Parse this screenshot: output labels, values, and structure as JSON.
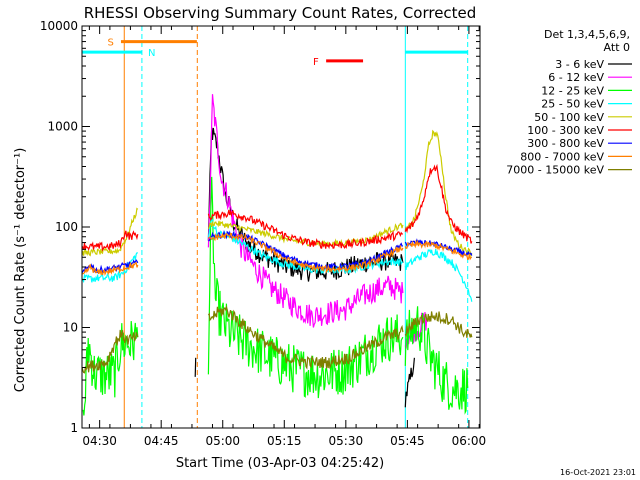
{
  "chart_data": {
    "type": "line",
    "title": "RHESSI Observing Summary Count Rates, Corrected",
    "xlabel": "Start Time (03-Apr-03 04:25:42)",
    "ylabel": "Corrected Count Rate (s⁻¹ detector⁻¹)",
    "yscale": "log",
    "ylim": [
      1,
      10000
    ],
    "xlim_minutes": [
      0,
      97
    ],
    "y_ticks": [
      {
        "v": 1,
        "label": "1"
      },
      {
        "v": 10,
        "label": "10"
      },
      {
        "v": 100,
        "label": "100"
      },
      {
        "v": 1000,
        "label": "1000"
      },
      {
        "v": 10000,
        "label": "10000"
      }
    ],
    "x_ticks": [
      {
        "m": 4.3,
        "label": "04:30"
      },
      {
        "m": 19.3,
        "label": "04:45"
      },
      {
        "m": 34.3,
        "label": "05:00"
      },
      {
        "m": 49.3,
        "label": "05:15"
      },
      {
        "m": 64.3,
        "label": "05:30"
      },
      {
        "m": 79.3,
        "label": "05:45"
      },
      {
        "m": 94.3,
        "label": "06:00"
      }
    ],
    "legend_header": [
      "Det 1,3,4,5,6,9,",
      "Att 0"
    ],
    "footer_date": "16-Oct-2021 23:01",
    "flags": [
      {
        "name": "S",
        "label": "S",
        "color": "#ff7f00",
        "start": 9.5,
        "end": 28.0,
        "level": 7000,
        "label_m": 7.0,
        "label_y": 7000
      },
      {
        "name": "N",
        "label": "N",
        "color": "#00ffff",
        "start": 0,
        "end": 14.5,
        "level": 5500,
        "label_m": 17.0,
        "label_y": 5500
      },
      {
        "name": "F",
        "label": "F",
        "color": "#ff0000",
        "start": 59.5,
        "end": 68.5,
        "level": 4500,
        "label_m": 57.0,
        "label_y": 4500
      },
      {
        "name": "N2",
        "label": "",
        "color": "#00ffff",
        "start": 78.8,
        "end": 94.0,
        "level": 5500
      }
    ],
    "markers": [
      {
        "m": 10.3,
        "color": "#ff7f00",
        "style": "solid"
      },
      {
        "m": 14.6,
        "color": "#00ffff",
        "style": "dashed"
      },
      {
        "m": 28.1,
        "color": "#ff7f00",
        "style": "dashed"
      },
      {
        "m": 78.8,
        "color": "#00ffff",
        "style": "solid"
      },
      {
        "m": 94.0,
        "color": "#00ffff",
        "style": "dashed"
      }
    ],
    "series": [
      {
        "name": "3 - 6 keV",
        "color": "#000000",
        "noise": 0.1,
        "segments": [
          [
            [
              27.6,
              3
            ],
            [
              27.7,
              5
            ]
          ],
          [
            [
              30.8,
              80
            ],
            [
              31.6,
              900
            ],
            [
              33.0,
              620
            ],
            [
              35.0,
              200
            ],
            [
              36.0,
              160
            ],
            [
              37.0,
              110
            ],
            [
              40.0,
              70
            ],
            [
              44.0,
              52
            ],
            [
              50.0,
              40
            ],
            [
              55.0,
              36
            ],
            [
              60.0,
              36
            ],
            [
              65.0,
              40
            ],
            [
              70.0,
              45
            ],
            [
              75.0,
              46
            ],
            [
              78.2,
              44
            ]
          ],
          [
            [
              78.8,
              2
            ],
            [
              80.0,
              3
            ],
            [
              81.0,
              5
            ]
          ]
        ]
      },
      {
        "name": "6 - 12 keV",
        "color": "#ff00ff",
        "noise": 0.12,
        "segments": [
          [
            [
              30.8,
              50
            ],
            [
              31.8,
              1800
            ],
            [
              32.7,
              900
            ],
            [
              34.0,
              300
            ],
            [
              35.5,
              200
            ],
            [
              37.0,
              110
            ],
            [
              39.0,
              60
            ],
            [
              42.0,
              40
            ],
            [
              46.0,
              25
            ],
            [
              52.0,
              16
            ],
            [
              56.0,
              13
            ],
            [
              60.0,
              14
            ],
            [
              64.0,
              15
            ],
            [
              68.0,
              20
            ],
            [
              72.0,
              24
            ],
            [
              75.0,
              26
            ],
            [
              78.2,
              22
            ]
          ],
          [
            [
              78.8,
              8
            ],
            [
              82.0,
              10
            ],
            [
              84.0,
              12
            ]
          ]
        ]
      },
      {
        "name": "12 - 25 keV",
        "color": "#00ff00",
        "noise": 0.25,
        "segments": [
          [
            [
              0.3,
              1.1
            ],
            [
              1.0,
              3
            ],
            [
              1.5,
              7
            ],
            [
              3.0,
              3.5
            ],
            [
              6.0,
              3.3
            ],
            [
              8.0,
              3.5
            ],
            [
              9.5,
              7
            ],
            [
              12.0,
              7
            ],
            [
              13.6,
              8
            ]
          ],
          [
            [
              30.8,
              6
            ],
            [
              31.6,
              200
            ],
            [
              32.5,
              20
            ],
            [
              34.0,
              12
            ],
            [
              36.0,
              9
            ],
            [
              40.0,
              7
            ],
            [
              46.0,
              5
            ],
            [
              52.0,
              3.8
            ],
            [
              58.0,
              3.4
            ],
            [
              64.0,
              3.8
            ],
            [
              68.0,
              5
            ],
            [
              72.0,
              7
            ],
            [
              75.0,
              8
            ],
            [
              78.2,
              8
            ]
          ],
          [
            [
              78.8,
              7
            ],
            [
              80.0,
              9
            ],
            [
              82.0,
              11
            ],
            [
              85.0,
              5
            ],
            [
              88.0,
              3
            ],
            [
              90.0,
              2.5
            ],
            [
              94.0,
              2.5
            ]
          ]
        ]
      },
      {
        "name": "25 - 50 keV",
        "color": "#00ffff",
        "noise": 0.04,
        "segments": [
          [
            [
              0.0,
              30
            ],
            [
              4.0,
              31
            ],
            [
              8.0,
              31
            ],
            [
              10.0,
              35
            ],
            [
              12.0,
              45
            ],
            [
              13.6,
              55
            ]
          ],
          [
            [
              30.8,
              80
            ],
            [
              31.6,
              120
            ],
            [
              33.0,
              85
            ],
            [
              36.0,
              80
            ],
            [
              40.0,
              65
            ],
            [
              44.0,
              52
            ],
            [
              50.0,
              42
            ],
            [
              55.0,
              38
            ],
            [
              60.0,
              37
            ],
            [
              65.0,
              38
            ],
            [
              70.0,
              42
            ],
            [
              74.0,
              45
            ],
            [
              78.2,
              45
            ]
          ],
          [
            [
              78.8,
              40
            ],
            [
              82.0,
              50
            ],
            [
              86.0,
              58
            ],
            [
              90.0,
              45
            ],
            [
              92.0,
              35
            ],
            [
              94.0,
              25
            ],
            [
              95.0,
              18
            ]
          ]
        ]
      },
      {
        "name": "50 - 100 keV",
        "color": "#cccc00",
        "noise": 0.03,
        "segments": [
          [
            [
              0.0,
              55
            ],
            [
              3.0,
              56
            ],
            [
              6.0,
              57
            ],
            [
              9.0,
              58
            ],
            [
              11.0,
              80
            ],
            [
              12.5,
              120
            ],
            [
              13.6,
              150
            ]
          ],
          [
            [
              30.8,
              100
            ],
            [
              32.0,
              110
            ],
            [
              35.0,
              105
            ],
            [
              40.0,
              95
            ],
            [
              45.0,
              85
            ],
            [
              50.0,
              75
            ],
            [
              55.0,
              70
            ],
            [
              60.0,
              68
            ],
            [
              65.0,
              70
            ],
            [
              70.0,
              75
            ],
            [
              74.0,
              90
            ],
            [
              78.2,
              105
            ]
          ],
          [
            [
              78.8,
              90
            ],
            [
              81.0,
              120
            ],
            [
              83.0,
              250
            ],
            [
              84.5,
              650
            ],
            [
              85.5,
              850
            ],
            [
              86.5,
              850
            ],
            [
              87.5,
              500
            ],
            [
              88.5,
              220
            ],
            [
              90.0,
              90
            ],
            [
              92.0,
              65
            ],
            [
              95.0,
              55
            ]
          ]
        ]
      },
      {
        "name": "100 - 300 keV",
        "color": "#ff0000",
        "noise": 0.04,
        "segments": [
          [
            [
              0.0,
              65
            ],
            [
              3.0,
              63
            ],
            [
              6.0,
              64
            ],
            [
              8.0,
              65
            ],
            [
              9.5,
              70
            ],
            [
              10.5,
              90
            ],
            [
              11.5,
              80
            ],
            [
              13.6,
              85
            ]
          ],
          [
            [
              30.8,
              125
            ],
            [
              33.0,
              132
            ],
            [
              36.0,
              138
            ],
            [
              40.0,
              125
            ],
            [
              45.0,
              100
            ],
            [
              50.0,
              80
            ],
            [
              55.0,
              70
            ],
            [
              60.0,
              66
            ],
            [
              65.0,
              67
            ],
            [
              70.0,
              72
            ],
            [
              74.0,
              78
            ],
            [
              78.2,
              85
            ]
          ],
          [
            [
              78.8,
              90
            ],
            [
              81.0,
              110
            ],
            [
              83.0,
              170
            ],
            [
              84.5,
              330
            ],
            [
              85.5,
              400
            ],
            [
              86.5,
              380
            ],
            [
              87.5,
              260
            ],
            [
              88.5,
              160
            ],
            [
              90.0,
              110
            ],
            [
              92.0,
              90
            ],
            [
              95.0,
              72
            ]
          ]
        ]
      },
      {
        "name": "300 - 800 keV",
        "color": "#0000ff",
        "noise": 0.03,
        "segments": [
          [
            [
              0.0,
              34
            ],
            [
              2.0,
              42
            ],
            [
              3.5,
              37
            ],
            [
              6.0,
              38
            ],
            [
              9.0,
              40
            ],
            [
              11.0,
              42
            ],
            [
              13.6,
              44
            ]
          ],
          [
            [
              30.8,
              78
            ],
            [
              33.0,
              83
            ],
            [
              36.0,
              84
            ],
            [
              40.0,
              80
            ],
            [
              45.0,
              65
            ],
            [
              50.0,
              50
            ],
            [
              55.0,
              43
            ],
            [
              60.0,
              40
            ],
            [
              65.0,
              41
            ],
            [
              70.0,
              45
            ],
            [
              74.0,
              55
            ],
            [
              78.2,
              65
            ]
          ],
          [
            [
              78.8,
              68
            ],
            [
              82.0,
              70
            ],
            [
              86.0,
              68
            ],
            [
              90.0,
              60
            ],
            [
              93.0,
              55
            ],
            [
              95.0,
              52
            ]
          ]
        ]
      },
      {
        "name": "800 - 7000 keV",
        "color": "#ff7f00",
        "noise": 0.03,
        "segments": [
          [
            [
              0.0,
              32
            ],
            [
              2.0,
              40
            ],
            [
              3.5,
              35
            ],
            [
              6.0,
              36
            ],
            [
              9.0,
              38
            ],
            [
              11.0,
              40
            ],
            [
              13.6,
              42
            ]
          ],
          [
            [
              30.8,
              74
            ],
            [
              33.0,
              80
            ],
            [
              36.0,
              82
            ],
            [
              40.0,
              78
            ],
            [
              45.0,
              62
            ],
            [
              50.0,
              47
            ],
            [
              55.0,
              40
            ],
            [
              60.0,
              38
            ],
            [
              65.0,
              39
            ],
            [
              70.0,
              43
            ],
            [
              74.0,
              52
            ],
            [
              78.2,
              62
            ]
          ],
          [
            [
              78.8,
              64
            ],
            [
              82.0,
              67
            ],
            [
              86.0,
              66
            ],
            [
              90.0,
              58
            ],
            [
              93.0,
              52
            ],
            [
              95.0,
              50
            ]
          ]
        ]
      },
      {
        "name": "7000 - 15000 keV",
        "color": "#7f7f00",
        "noise": 0.06,
        "segments": [
          [
            [
              0.0,
              4
            ],
            [
              3.0,
              4.2
            ],
            [
              6.0,
              4.5
            ],
            [
              8.0,
              7
            ],
            [
              9.5,
              8.5
            ],
            [
              11.0,
              7.5
            ],
            [
              13.6,
              8
            ]
          ],
          [
            [
              30.8,
              12
            ],
            [
              33.0,
              14
            ],
            [
              35.0,
              15
            ],
            [
              37.0,
              13
            ],
            [
              40.0,
              10
            ],
            [
              45.0,
              7
            ],
            [
              50.0,
              5
            ],
            [
              55.0,
              4.5
            ],
            [
              60.0,
              4.5
            ],
            [
              65.0,
              5
            ],
            [
              70.0,
              6.5
            ],
            [
              74.0,
              8
            ],
            [
              78.2,
              9
            ]
          ],
          [
            [
              78.8,
              9
            ],
            [
              82.0,
              12
            ],
            [
              86.0,
              13
            ],
            [
              90.0,
              12
            ],
            [
              93.0,
              9
            ],
            [
              95.0,
              8
            ]
          ]
        ]
      }
    ]
  }
}
